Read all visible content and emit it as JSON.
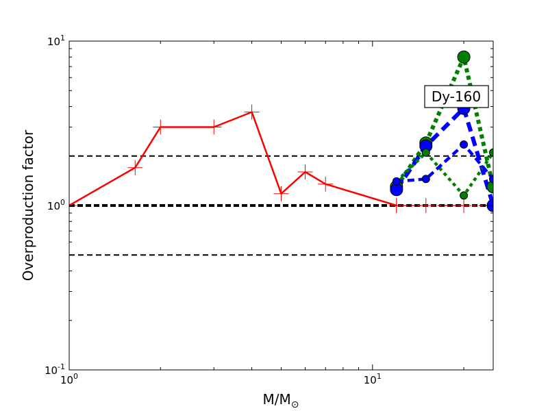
{
  "chart_data": {
    "type": "line",
    "title": "",
    "xlabel": "M/M",
    "xlabel_subscript": "⊙",
    "ylabel": "Overproduction factor",
    "xscale": "log",
    "yscale": "log",
    "xlim": [
      1,
      25
    ],
    "ylim": [
      0.1,
      10
    ],
    "x_ticks": [
      {
        "value": 1,
        "base": "10",
        "exp": "0"
      },
      {
        "value": 10,
        "base": "10",
        "exp": "1"
      }
    ],
    "y_ticks": [
      {
        "value": 0.1,
        "base": "10",
        "exp": "-1"
      },
      {
        "value": 1,
        "base": "10",
        "exp": "0"
      },
      {
        "value": 10,
        "base": "10",
        "exp": "1"
      }
    ],
    "reference_lines": [
      {
        "y": 2,
        "style": "dashed",
        "color": "#000000",
        "width": "thin"
      },
      {
        "y": 1,
        "style": "dashed",
        "color": "#000000",
        "width": "thick"
      },
      {
        "y": 0.5,
        "style": "dashed",
        "color": "#000000",
        "width": "thin"
      }
    ],
    "annotation": {
      "text": "Dy-160",
      "x": 20,
      "y": 4.4
    },
    "series": [
      {
        "color": "#ff0000",
        "style": "solid",
        "marker": "plus",
        "x": [
          1,
          1.65,
          2,
          3,
          4,
          5,
          6,
          7,
          12
        ],
        "y": [
          1.0,
          1.7,
          3.0,
          3.0,
          3.7,
          1.18,
          1.6,
          1.35,
          1.0
        ]
      },
      {
        "color": "#ff0000",
        "style": "dashed",
        "marker": "plus",
        "x": [
          12,
          15,
          20,
          25
        ],
        "y": [
          1.0,
          1.0,
          1.0,
          1.0
        ]
      },
      {
        "color": "#008000",
        "style": "dotted",
        "marker": "circle-large",
        "x": [
          12,
          15,
          20,
          25
        ],
        "y": [
          1.3,
          2.4,
          8.0,
          1.3
        ]
      },
      {
        "color": "#0000ff",
        "style": "dashed",
        "marker": "circle-large",
        "x": [
          12,
          15,
          20,
          25
        ],
        "y": [
          1.25,
          2.3,
          3.9,
          1.0
        ]
      },
      {
        "color": "#008000",
        "style": "dotted",
        "marker": "circle-small",
        "x": [
          12,
          15,
          20,
          25
        ],
        "y": [
          1.4,
          2.1,
          1.15,
          2.1
        ]
      },
      {
        "color": "#0000ff",
        "style": "dashed",
        "marker": "circle-small",
        "x": [
          12,
          15,
          20,
          25
        ],
        "y": [
          1.4,
          1.45,
          2.35,
          1.45
        ]
      }
    ]
  }
}
